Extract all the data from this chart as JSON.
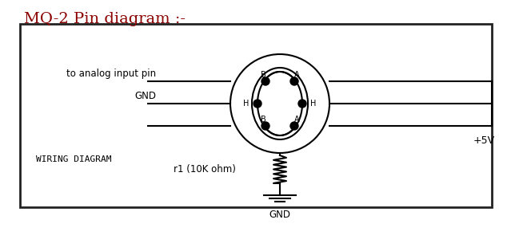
{
  "title": "MQ-2 Pin diagram :-",
  "title_color": "#8B0000",
  "title_fontsize": 14,
  "bg_color": "#ffffff",
  "box_color": "#222222",
  "diagram_text": "WIRING DIAGRAM",
  "label_analog": "to analog input pin",
  "label_gnd_left": "GND",
  "label_r1": "r1 (10K ohm)",
  "label_gnd_bottom": "GND",
  "label_5v": "+5V",
  "pin_labels": [
    "B",
    "A",
    "H",
    "H",
    "B",
    "A"
  ]
}
